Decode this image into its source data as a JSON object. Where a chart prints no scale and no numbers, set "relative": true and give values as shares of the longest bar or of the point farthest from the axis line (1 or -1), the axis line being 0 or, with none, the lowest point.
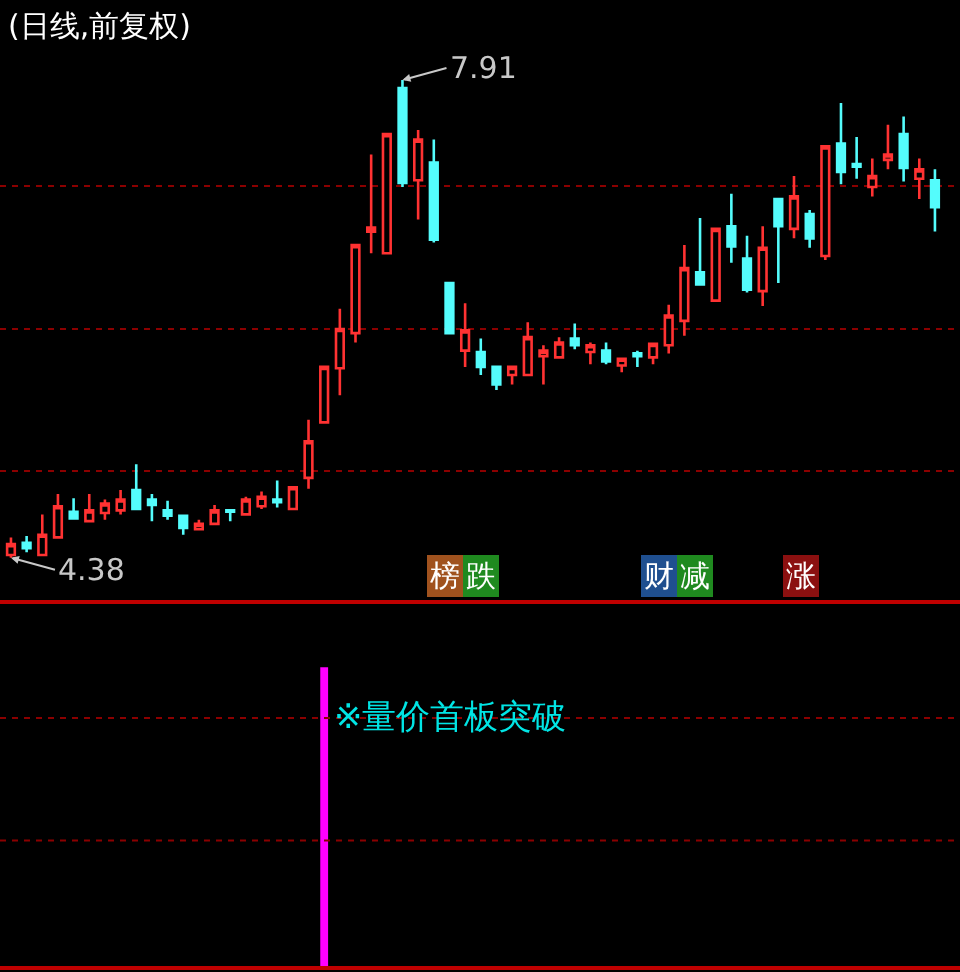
{
  "chart_data": [
    {
      "type": "candlestick",
      "title": "(日线,前复权)",
      "categories": [
        null,
        null,
        null,
        null,
        null,
        null,
        null,
        null,
        null,
        null,
        null,
        null,
        null,
        null,
        null,
        null,
        null,
        null,
        null,
        null,
        null,
        null,
        null,
        null,
        null,
        null,
        null,
        null,
        null,
        null,
        null,
        null,
        null,
        null,
        null,
        null,
        null,
        null,
        null,
        null,
        null,
        null,
        null,
        null,
        null,
        null,
        null,
        null,
        null,
        null,
        null,
        null,
        null,
        null,
        null,
        null,
        null,
        null,
        null,
        null
      ],
      "ohlc": [
        [
          4.4,
          4.53,
          4.38,
          4.48
        ],
        [
          4.49,
          4.54,
          4.42,
          4.45
        ],
        [
          4.4,
          4.7,
          4.4,
          4.55
        ],
        [
          4.53,
          4.85,
          4.53,
          4.76
        ],
        [
          4.72,
          4.82,
          4.67,
          4.67
        ],
        [
          4.65,
          4.85,
          4.65,
          4.73
        ],
        [
          4.71,
          4.81,
          4.66,
          4.78
        ],
        [
          4.73,
          4.88,
          4.7,
          4.81
        ],
        [
          4.88,
          5.07,
          4.74,
          4.74
        ],
        [
          4.81,
          4.85,
          4.65,
          4.77
        ],
        [
          4.73,
          4.8,
          4.66,
          4.69
        ],
        [
          4.69,
          4.69,
          4.55,
          4.6
        ],
        [
          4.59,
          4.66,
          4.59,
          4.63
        ],
        [
          4.63,
          4.77,
          4.63,
          4.73
        ],
        [
          4.73,
          4.73,
          4.65,
          4.72
        ],
        [
          4.7,
          4.83,
          4.7,
          4.81
        ],
        [
          4.76,
          4.87,
          4.74,
          4.83
        ],
        [
          4.81,
          4.95,
          4.75,
          4.79
        ],
        [
          4.74,
          4.9,
          4.74,
          4.9
        ],
        [
          4.97,
          5.4,
          4.89,
          5.24
        ],
        [
          5.38,
          5.79,
          5.38,
          5.79
        ],
        [
          5.78,
          6.22,
          5.58,
          6.07
        ],
        [
          6.04,
          6.69,
          5.97,
          6.69
        ],
        [
          6.79,
          7.36,
          6.63,
          6.82
        ],
        [
          6.63,
          7.51,
          6.63,
          7.51
        ],
        [
          7.85,
          7.91,
          7.12,
          7.15
        ],
        [
          7.17,
          7.54,
          6.88,
          7.47
        ],
        [
          7.3,
          7.47,
          6.71,
          6.73
        ],
        [
          6.41,
          6.41,
          6.04,
          6.04
        ],
        [
          5.91,
          6.26,
          5.79,
          6.06
        ],
        [
          5.9,
          6.0,
          5.73,
          5.79
        ],
        [
          5.79,
          5.79,
          5.62,
          5.66
        ],
        [
          5.73,
          5.79,
          5.66,
          5.79
        ],
        [
          5.73,
          6.12,
          5.73,
          6.01
        ],
        [
          5.87,
          5.95,
          5.66,
          5.91
        ],
        [
          5.86,
          6.01,
          5.85,
          5.97
        ],
        [
          6.0,
          6.11,
          5.92,
          5.95
        ],
        [
          5.9,
          5.97,
          5.81,
          5.95
        ],
        [
          5.91,
          5.97,
          5.81,
          5.83
        ],
        [
          5.8,
          5.86,
          5.75,
          5.85
        ],
        [
          5.89,
          5.91,
          5.79,
          5.87
        ],
        [
          5.86,
          5.97,
          5.81,
          5.96
        ],
        [
          5.95,
          6.25,
          5.89,
          6.17
        ],
        [
          6.13,
          6.69,
          6.02,
          6.52
        ],
        [
          6.49,
          6.89,
          6.39,
          6.4
        ],
        [
          6.28,
          6.81,
          6.28,
          6.81
        ],
        [
          6.83,
          7.07,
          6.56,
          6.68
        ],
        [
          6.59,
          6.76,
          6.34,
          6.36
        ],
        [
          6.35,
          6.83,
          6.24,
          6.67
        ],
        [
          7.03,
          7.03,
          6.41,
          6.83
        ],
        [
          6.81,
          7.2,
          6.74,
          7.05
        ],
        [
          6.92,
          6.95,
          6.67,
          6.74
        ],
        [
          6.61,
          7.42,
          6.58,
          7.42
        ],
        [
          7.44,
          7.74,
          7.14,
          7.23
        ],
        [
          7.29,
          7.49,
          7.18,
          7.27
        ],
        [
          7.12,
          7.33,
          7.05,
          7.2
        ],
        [
          7.32,
          7.58,
          7.25,
          7.36
        ],
        [
          7.51,
          7.64,
          7.16,
          7.26
        ],
        [
          7.18,
          7.33,
          7.03,
          7.25
        ],
        [
          7.17,
          7.25,
          6.79,
          6.97
        ]
      ],
      "colors": [
        "#ff3232",
        "#54fcfc",
        "#ff3232",
        "#ff3232",
        "#54fcfc",
        "#ff3232",
        "#ff3232",
        "#ff3232",
        "#54fcfc",
        "#54fcfc",
        "#54fcfc",
        "#54fcfc",
        "#ff3232",
        "#ff3232",
        "#54fcfc",
        "#ff3232",
        "#ff3232",
        "#54fcfc",
        "#ff3232",
        "#ff3232",
        "#ff3232",
        "#ff3232",
        "#ff3232",
        "#ff3232",
        "#ff3232",
        "#54fcfc",
        "#ff3232",
        "#54fcfc",
        "#54fcfc",
        "#ff3232",
        "#54fcfc",
        "#54fcfc",
        "#ff3232",
        "#ff3232",
        "#ff3232",
        "#ff3232",
        "#54fcfc",
        "#ff3232",
        "#54fcfc",
        "#ff3232",
        "#54fcfc",
        "#ff3232",
        "#ff3232",
        "#ff3232",
        "#54fcfc",
        "#ff3232",
        "#54fcfc",
        "#54fcfc",
        "#ff3232",
        "#54fcfc",
        "#ff3232",
        "#54fcfc",
        "#ff3232",
        "#54fcfc",
        "#54fcfc",
        "#ff3232",
        "#ff3232",
        "#54fcfc",
        "#ff3232",
        "#54fcfc"
      ],
      "yticks": [
        {
          "value": 5.02,
          "label": null
        },
        {
          "value": 6.07,
          "label": null
        },
        {
          "value": 7.13,
          "label": null
        }
      ],
      "grid": "y",
      "annotations": [
        "7.91",
        "4.38",
        "榜",
        "跌",
        "财",
        "减",
        "涨"
      ]
    },
    {
      "type": "bar",
      "relative": true,
      "categories": [
        null,
        null,
        null,
        null,
        null,
        null,
        null,
        null,
        null,
        null,
        null,
        null,
        null,
        null,
        null,
        null,
        null,
        null,
        null,
        null,
        null,
        null,
        null,
        null,
        null,
        null,
        null,
        null,
        null,
        null,
        null,
        null,
        null,
        null,
        null,
        null,
        null,
        null,
        null,
        null,
        null,
        null,
        null,
        null,
        null,
        null,
        null,
        null,
        null,
        null,
        null,
        null,
        null,
        null,
        null,
        null,
        null,
        null,
        null,
        null
      ],
      "values": [
        null,
        null,
        null,
        null,
        null,
        null,
        null,
        null,
        null,
        null,
        null,
        null,
        null,
        null,
        null,
        null,
        null,
        null,
        null,
        null,
        1,
        null,
        null,
        null,
        null,
        null,
        null,
        null,
        null,
        null,
        null,
        null,
        null,
        null,
        null,
        null,
        null,
        null,
        null,
        null,
        null,
        null,
        null,
        null,
        null,
        null,
        null,
        null,
        null,
        null,
        null,
        null,
        null,
        null,
        null,
        null,
        null,
        null,
        null,
        null
      ],
      "color": "#ff00ff",
      "ref_lines": [
        {
          "axis": "y",
          "value": 0.83,
          "color": "#8b0000",
          "line_style": "dotted"
        },
        {
          "axis": "y",
          "value": 0.42,
          "color": "#8b0000",
          "line_style": "dotted"
        }
      ],
      "annotations": [
        "※量价首板突破"
      ]
    }
  ]
}
